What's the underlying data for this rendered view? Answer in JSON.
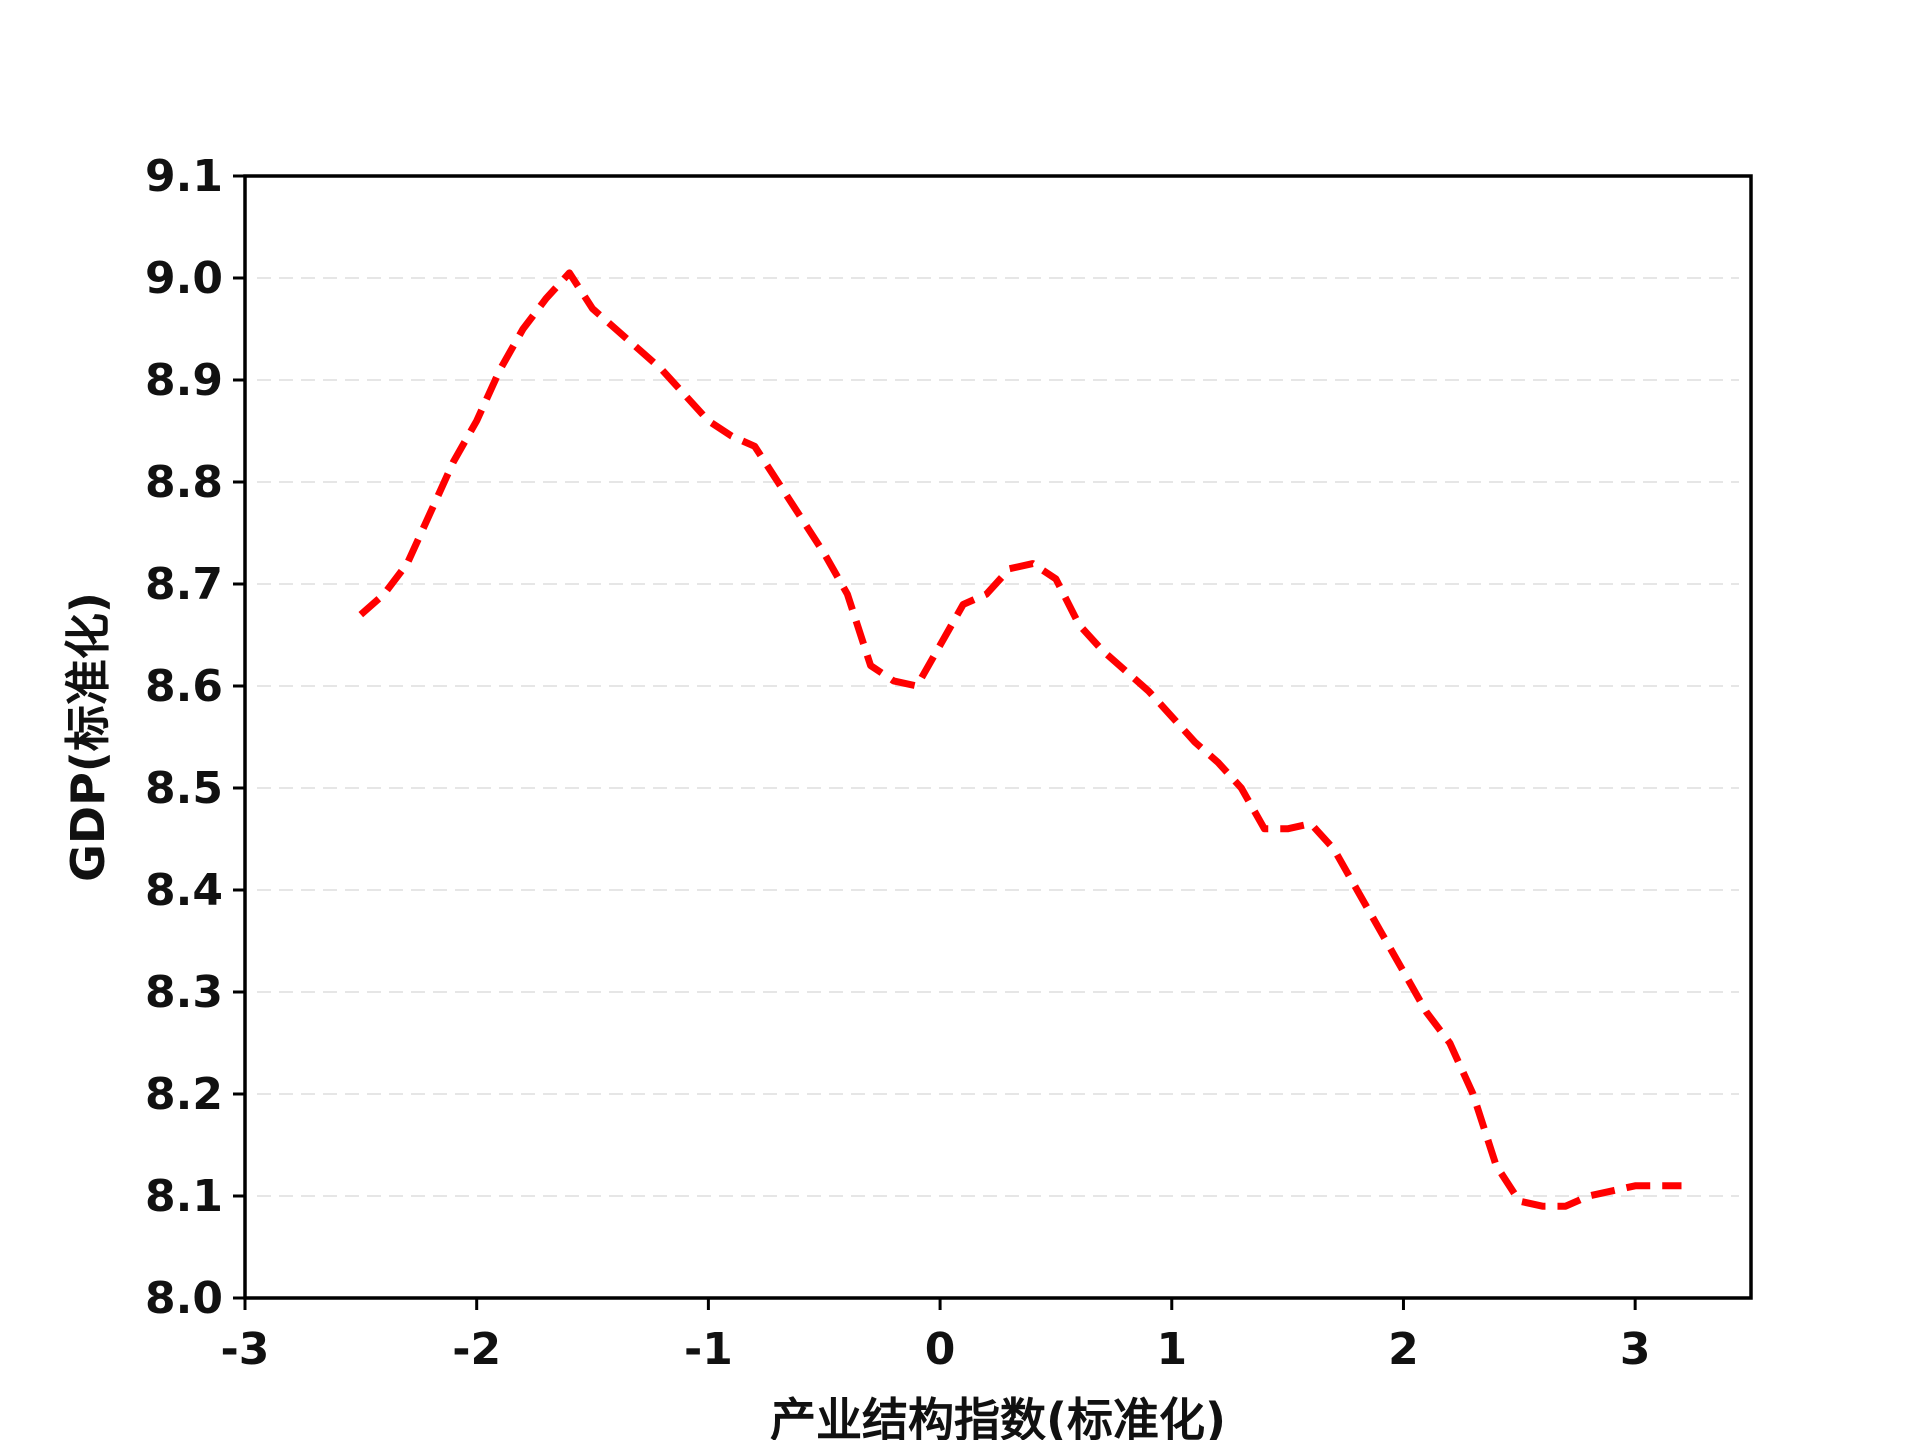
{
  "chart_data": {
    "type": "line",
    "title": "",
    "xlabel": "产业结构指数(标准化)",
    "ylabel": "GDP(标准化)",
    "xlim": [
      -3,
      3.5
    ],
    "ylim": [
      8.0,
      9.1
    ],
    "xticks": [
      -3,
      -2,
      -1,
      0,
      1,
      2,
      3
    ],
    "xtick_labels": [
      "-3",
      "-2",
      "-1",
      "0",
      "1",
      "2",
      "3"
    ],
    "yticks": [
      8.0,
      8.1,
      8.2,
      8.3,
      8.4,
      8.5,
      8.6,
      8.7,
      8.8,
      8.9,
      9.0,
      9.1
    ],
    "ytick_labels": [
      "8.0",
      "8.1",
      "8.2",
      "8.3",
      "8.4",
      "8.5",
      "8.6",
      "8.7",
      "8.8",
      "8.9",
      "9.0",
      "9.1"
    ],
    "grid": "horizontal dashed, light",
    "legend": "none",
    "series": [
      {
        "color": "#ff0000",
        "line_style": "dashed",
        "x": [
          -2.5,
          -2.4,
          -2.3,
          -2.2,
          -2.1,
          -2.0,
          -1.9,
          -1.8,
          -1.7,
          -1.6,
          -1.5,
          -1.4,
          -1.3,
          -1.2,
          -1.1,
          -1.0,
          -0.9,
          -0.8,
          -0.7,
          -0.6,
          -0.5,
          -0.4,
          -0.3,
          -0.2,
          -0.1,
          0.0,
          0.1,
          0.2,
          0.3,
          0.4,
          0.5,
          0.6,
          0.7,
          0.8,
          0.9,
          1.0,
          1.1,
          1.2,
          1.3,
          1.4,
          1.5,
          1.6,
          1.7,
          1.8,
          1.9,
          2.0,
          2.1,
          2.2,
          2.3,
          2.4,
          2.5,
          2.6,
          2.7,
          2.8,
          2.9,
          3.0,
          3.1,
          3.2
        ],
        "y": [
          8.67,
          8.69,
          8.72,
          8.77,
          8.82,
          8.86,
          8.91,
          8.95,
          8.98,
          9.005,
          8.97,
          8.95,
          8.93,
          8.91,
          8.885,
          8.86,
          8.845,
          8.835,
          8.8,
          8.765,
          8.73,
          8.69,
          8.62,
          8.605,
          8.6,
          8.64,
          8.68,
          8.69,
          8.715,
          8.72,
          8.705,
          8.66,
          8.635,
          8.615,
          8.595,
          8.57,
          8.545,
          8.525,
          8.5,
          8.46,
          8.46,
          8.465,
          8.44,
          8.4,
          8.36,
          8.32,
          8.28,
          8.25,
          8.2,
          8.13,
          8.095,
          8.09,
          8.09,
          8.1,
          8.105,
          8.11,
          8.11,
          8.11
        ]
      }
    ]
  }
}
